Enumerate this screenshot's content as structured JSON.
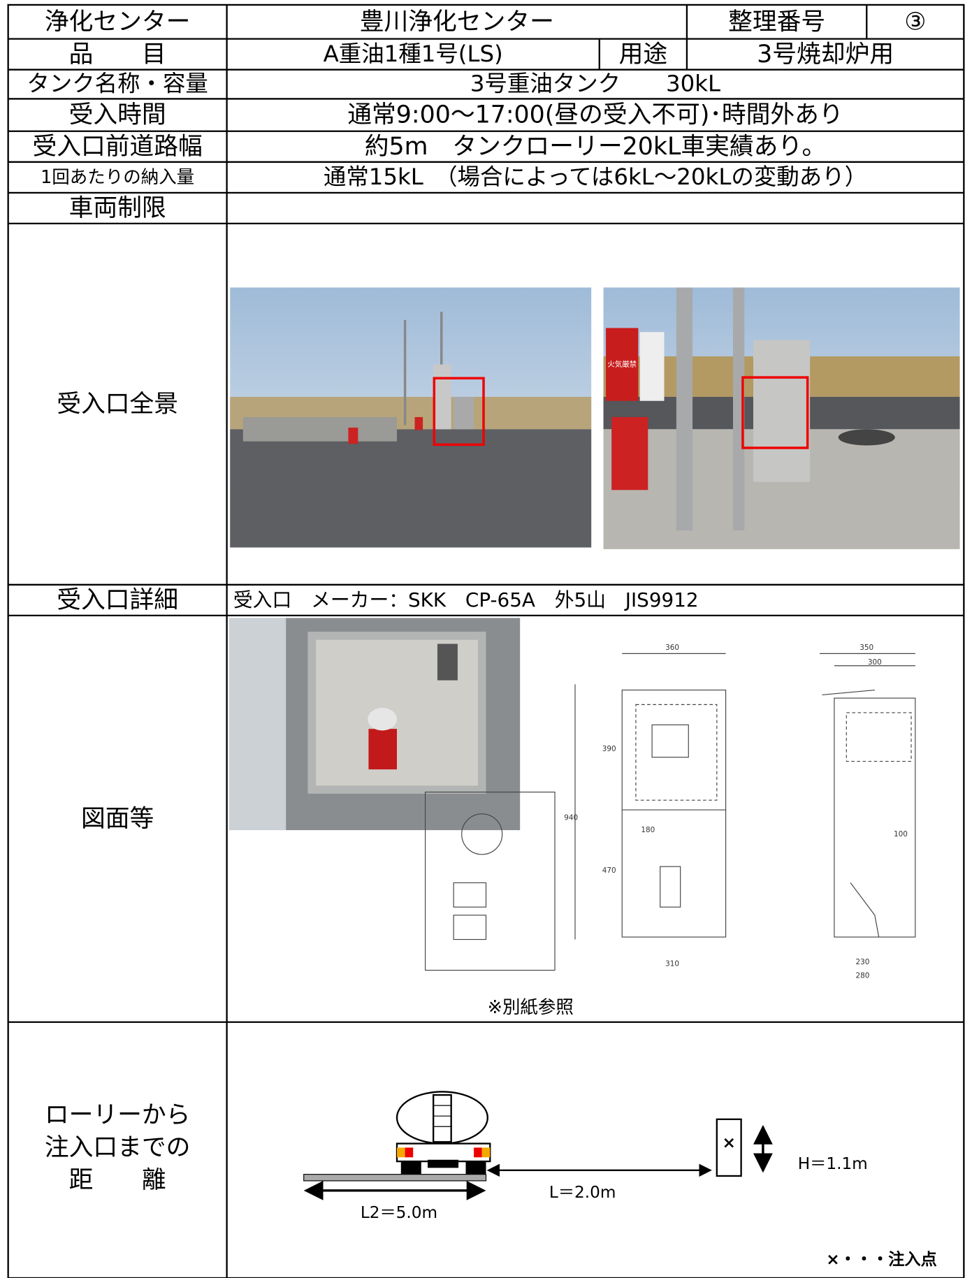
{
  "table": {
    "center": {
      "label": "浄化センター",
      "value": "豊川浄化センター"
    },
    "ref": {
      "label": "整理番号",
      "value": "③"
    },
    "item": {
      "label": "品　　目",
      "value": "A重油1種1号(LS)"
    },
    "use": {
      "label": "用途",
      "value": "3号焼却炉用"
    },
    "tank": {
      "label": "タンク名称・容量",
      "value": "3号重油タンク　　30kL"
    },
    "hours": {
      "label": "受入時間",
      "value": "通常9:00〜17:00(昼の受入不可)･時間外あり"
    },
    "road": {
      "label": "受入口前道路幅",
      "value": "約5m　タンクローリー20kL車実績あり。"
    },
    "amount": {
      "label": "1回あたりの納入量",
      "value": "通常15kL　（場合によっては6kL〜20kLの変動あり）"
    },
    "vehicle": {
      "label": "車両制限"
    },
    "overview": {
      "label": "受入口全景",
      "sign": "火気厳禁"
    },
    "detail": {
      "label": "受入口詳細",
      "value": "受入口　メーカー：SKK　CP-65A　外5山　JIS9912"
    },
    "drawings": {
      "label": "図面等",
      "note": "※別紙参照",
      "front_dims": [
        "360",
        "390",
        "470",
        "940",
        "180",
        "310"
      ],
      "side_dims": [
        "350",
        "300",
        "100",
        "230",
        "280"
      ]
    },
    "distance": {
      "label_lines": [
        "ローリーから",
        "注入口までの",
        "距　　離"
      ],
      "l2": "L2＝5.0m",
      "l": "L＝2.0m",
      "h": "H＝1.1m",
      "inlet_mark": "×",
      "legend": "×・・・注入点"
    }
  }
}
